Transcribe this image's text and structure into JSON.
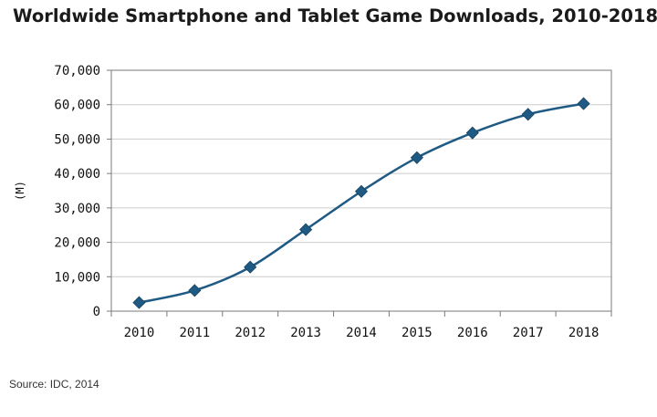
{
  "colors": {
    "series": "#1f5a84",
    "grid": "#cccccc",
    "axis": "#7a7a7a"
  },
  "source": "Source: IDC, 2014",
  "chart_data": {
    "type": "line",
    "title": "Worldwide Smartphone and Tablet Game Downloads, 2010-2018",
    "xlabel": "",
    "ylabel": "(M)",
    "categories": [
      "2010",
      "2011",
      "2012",
      "2013",
      "2014",
      "2015",
      "2016",
      "2017",
      "2018"
    ],
    "series": [
      {
        "values": [
          2500,
          6000,
          12800,
          23700,
          34800,
          44600,
          51800,
          57200,
          60300
        ]
      }
    ],
    "ylim": [
      0,
      70000
    ],
    "yticks": [
      0,
      10000,
      20000,
      30000,
      40000,
      50000,
      60000,
      70000
    ],
    "ytick_labels": [
      "0",
      "10,000",
      "20,000",
      "30,000",
      "40,000",
      "50,000",
      "60,000",
      "70,000"
    ],
    "grid": true,
    "legend": "none"
  }
}
